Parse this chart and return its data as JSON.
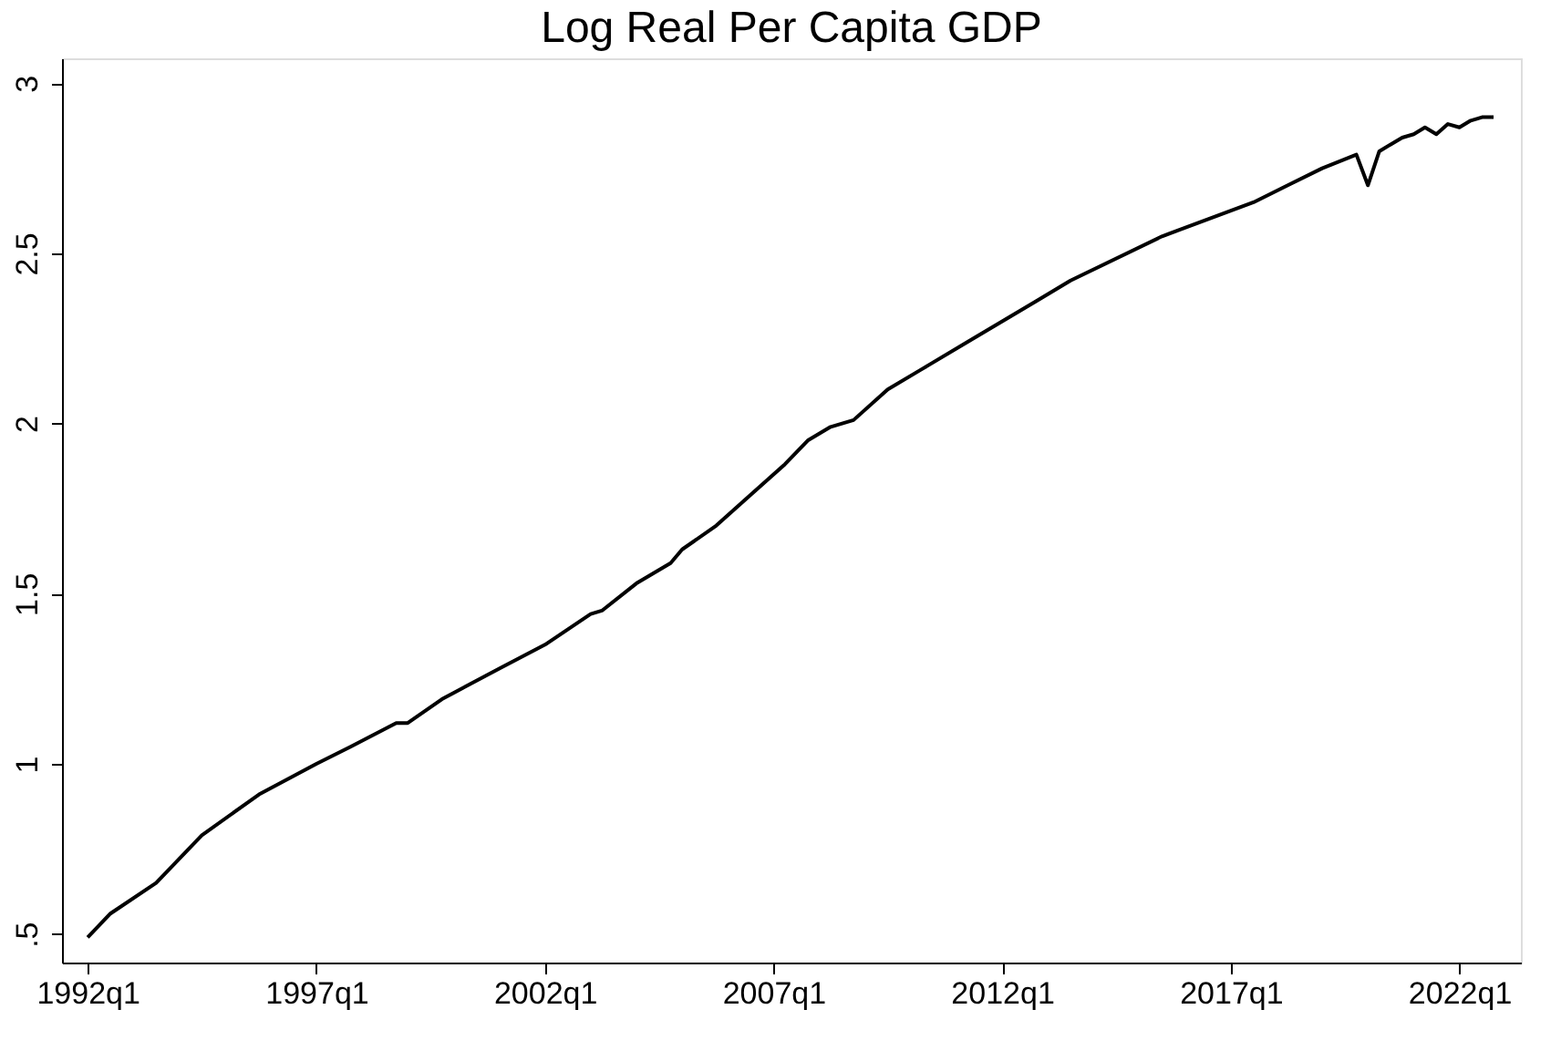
{
  "chart_data": {
    "type": "line",
    "title": "Log Real Per Capita GDP",
    "x": [
      "1992-01",
      "1992-07",
      "1993-07",
      "1994-07",
      "1995-10",
      "1997-01",
      "1997-10",
      "1998-10",
      "1999-01",
      "1999-10",
      "2001-01",
      "2002-01",
      "2003-01",
      "2003-04",
      "2004-01",
      "2004-10",
      "2005-01",
      "2005-10",
      "2006-07",
      "2007-04",
      "2007-10",
      "2008-04",
      "2008-10",
      "2009-07",
      "2010-04",
      "2011-04",
      "2012-10",
      "2013-07",
      "2015-07",
      "2017-07",
      "2018-04",
      "2019-01",
      "2019-10",
      "2020-01",
      "2020-04",
      "2020-07",
      "2020-10",
      "2021-01",
      "2021-04",
      "2021-07",
      "2021-10",
      "2022-01",
      "2022-04",
      "2022-07",
      "2022-10"
    ],
    "series": [
      {
        "color": "#000000",
        "values": [
          0.49,
          0.56,
          0.65,
          0.79,
          0.91,
          1.0,
          1.05,
          1.12,
          1.12,
          1.19,
          1.28,
          1.35,
          1.44,
          1.45,
          1.53,
          1.59,
          1.63,
          1.7,
          1.79,
          1.88,
          1.95,
          1.99,
          2.01,
          2.1,
          2.16,
          2.24,
          2.36,
          2.42,
          2.55,
          2.65,
          2.7,
          2.75,
          2.79,
          2.7,
          2.8,
          2.82,
          2.84,
          2.85,
          2.87,
          2.85,
          2.88,
          2.87,
          2.89,
          2.9,
          2.9
        ]
      }
    ],
    "xlim": [
      "1991-06-10",
      "2023-05-07"
    ],
    "xticks": [
      {
        "value": "1992-01",
        "label": "1992q1"
      },
      {
        "value": "1997-01",
        "label": "1997q1"
      },
      {
        "value": "2002-01",
        "label": "2002q1"
      },
      {
        "value": "2007-01",
        "label": "2007q1"
      },
      {
        "value": "2012-01",
        "label": "2012q1"
      },
      {
        "value": "2017-01",
        "label": "2017q1"
      },
      {
        "value": "2022-01",
        "label": "2022q1"
      }
    ],
    "ylim": [
      0.416,
      3.073
    ],
    "yticks": [
      {
        "value": 0.5,
        "label": ".5"
      },
      1,
      1.5,
      2,
      2.5,
      3
    ],
    "grid": false,
    "marker": "none",
    "line_style": "solid"
  }
}
